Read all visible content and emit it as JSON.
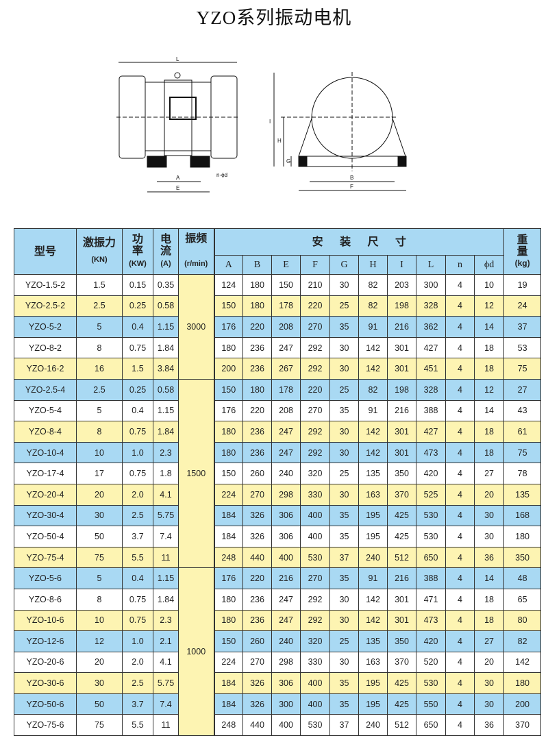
{
  "title": "YZO系列振动电机",
  "diagram": {
    "front_labels": [
      "L",
      "A",
      "E",
      "n-ϕd"
    ],
    "side_labels": [
      "I",
      "H",
      "G",
      "B",
      "F"
    ]
  },
  "colors": {
    "header": "#a9d9f3",
    "yellow": "#fdf4b2",
    "blue": "#a9d9f3",
    "white": "#ffffff"
  },
  "table": {
    "headers": {
      "model": "型号",
      "force": "激振力",
      "force_unit": "(KN)",
      "power": "功率",
      "power_unit": "(KW)",
      "current": "电流",
      "current_unit": "(A)",
      "freq": "振频",
      "freq_unit": "(r/min)",
      "install": "安 装 尺 寸",
      "weight": "重量",
      "weight_unit": "(kg)",
      "dims": [
        "A",
        "B",
        "E",
        "F",
        "G",
        "H",
        "I",
        "L",
        "n",
        "ϕd"
      ]
    },
    "groups": [
      {
        "freq": "3000",
        "rows": [
          [
            "YZO-1.5-2",
            "1.5",
            "0.15",
            "0.35",
            "124",
            "180",
            "150",
            "210",
            "30",
            "82",
            "203",
            "300",
            "4",
            "10",
            "19"
          ],
          [
            "YZO-2.5-2",
            "2.5",
            "0.25",
            "0.58",
            "150",
            "180",
            "178",
            "220",
            "25",
            "82",
            "198",
            "328",
            "4",
            "12",
            "24"
          ],
          [
            "YZO-5-2",
            "5",
            "0.4",
            "1.15",
            "176",
            "220",
            "208",
            "270",
            "35",
            "91",
            "216",
            "362",
            "4",
            "14",
            "37"
          ],
          [
            "YZO-8-2",
            "8",
            "0.75",
            "1.84",
            "180",
            "236",
            "247",
            "292",
            "30",
            "142",
            "301",
            "427",
            "4",
            "18",
            "53"
          ],
          [
            "YZO-16-2",
            "16",
            "1.5",
            "3.84",
            "200",
            "236",
            "267",
            "292",
            "30",
            "142",
            "301",
            "451",
            "4",
            "18",
            "75"
          ]
        ]
      },
      {
        "freq": "1500",
        "rows": [
          [
            "YZO-2.5-4",
            "2.5",
            "0.25",
            "0.58",
            "150",
            "180",
            "178",
            "220",
            "25",
            "82",
            "198",
            "328",
            "4",
            "12",
            "27"
          ],
          [
            "YZO-5-4",
            "5",
            "0.4",
            "1.15",
            "176",
            "220",
            "208",
            "270",
            "35",
            "91",
            "216",
            "388",
            "4",
            "14",
            "43"
          ],
          [
            "YZO-8-4",
            "8",
            "0.75",
            "1.84",
            "180",
            "236",
            "247",
            "292",
            "30",
            "142",
            "301",
            "427",
            "4",
            "18",
            "61"
          ],
          [
            "YZO-10-4",
            "10",
            "1.0",
            "2.3",
            "180",
            "236",
            "247",
            "292",
            "30",
            "142",
            "301",
            "473",
            "4",
            "18",
            "75"
          ],
          [
            "YZO-17-4",
            "17",
            "0.75",
            "1.8",
            "150",
            "260",
            "240",
            "320",
            "25",
            "135",
            "350",
            "420",
            "4",
            "27",
            "78"
          ],
          [
            "YZO-20-4",
            "20",
            "2.0",
            "4.1",
            "224",
            "270",
            "298",
            "330",
            "30",
            "163",
            "370",
            "525",
            "4",
            "20",
            "135"
          ],
          [
            "YZO-30-4",
            "30",
            "2.5",
            "5.75",
            "184",
            "326",
            "306",
            "400",
            "35",
            "195",
            "425",
            "530",
            "4",
            "30",
            "168"
          ],
          [
            "YZO-50-4",
            "50",
            "3.7",
            "7.4",
            "184",
            "326",
            "306",
            "400",
            "35",
            "195",
            "425",
            "530",
            "4",
            "30",
            "180"
          ],
          [
            "YZO-75-4",
            "75",
            "5.5",
            "11",
            "248",
            "440",
            "400",
            "530",
            "37",
            "240",
            "512",
            "650",
            "4",
            "36",
            "350"
          ]
        ]
      },
      {
        "freq": "1000",
        "rows": [
          [
            "YZO-5-6",
            "5",
            "0.4",
            "1.15",
            "176",
            "220",
            "216",
            "270",
            "35",
            "91",
            "216",
            "388",
            "4",
            "14",
            "48"
          ],
          [
            "YZO-8-6",
            "8",
            "0.75",
            "1.84",
            "180",
            "236",
            "247",
            "292",
            "30",
            "142",
            "301",
            "471",
            "4",
            "18",
            "65"
          ],
          [
            "YZO-10-6",
            "10",
            "0.75",
            "2.3",
            "180",
            "236",
            "247",
            "292",
            "30",
            "142",
            "301",
            "473",
            "4",
            "18",
            "80"
          ],
          [
            "YZO-12-6",
            "12",
            "1.0",
            "2.1",
            "150",
            "260",
            "240",
            "320",
            "25",
            "135",
            "350",
            "420",
            "4",
            "27",
            "82"
          ],
          [
            "YZO-20-6",
            "20",
            "2.0",
            "4.1",
            "224",
            "270",
            "298",
            "330",
            "30",
            "163",
            "370",
            "520",
            "4",
            "20",
            "142"
          ],
          [
            "YZO-30-6",
            "30",
            "2.5",
            "5.75",
            "184",
            "326",
            "306",
            "400",
            "35",
            "195",
            "425",
            "530",
            "4",
            "30",
            "180"
          ],
          [
            "YZO-50-6",
            "50",
            "3.7",
            "7.4",
            "184",
            "326",
            "300",
            "400",
            "35",
            "195",
            "425",
            "550",
            "4",
            "30",
            "200"
          ],
          [
            "YZO-75-6",
            "75",
            "5.5",
            "11",
            "248",
            "440",
            "400",
            "530",
            "37",
            "240",
            "512",
            "650",
            "4",
            "36",
            "370"
          ]
        ]
      }
    ]
  }
}
